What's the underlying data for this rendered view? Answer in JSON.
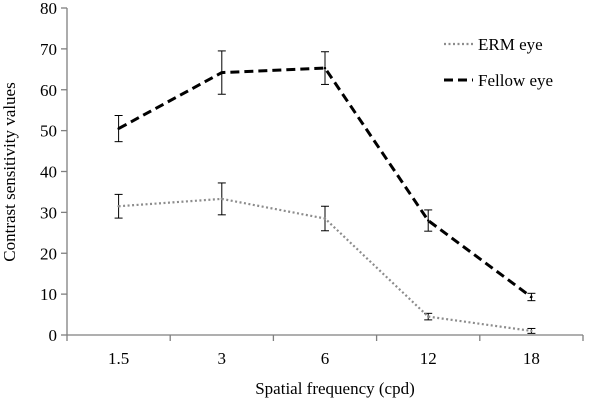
{
  "chart_data": {
    "type": "line",
    "title": "",
    "xlabel": "Spatial frequency (cpd)",
    "ylabel": "Contrast sensitivity values",
    "categories": [
      "1.5",
      "3",
      "6",
      "12",
      "18"
    ],
    "ylim": [
      0,
      80
    ],
    "yticks": [
      0,
      10,
      20,
      30,
      40,
      50,
      60,
      70,
      80
    ],
    "grid": false,
    "legend_position": "top-right",
    "series": [
      {
        "name": "ERM eye",
        "values": [
          31.5,
          33.3,
          28.5,
          4.5,
          1.0
        ],
        "error": [
          2.9,
          3.9,
          3.0,
          0.8,
          0.6
        ],
        "line_style": "dotted",
        "color": "#8c8c8c"
      },
      {
        "name": "Fellow eye",
        "values": [
          50.5,
          64.2,
          65.3,
          28.0,
          9.3
        ],
        "error": [
          3.2,
          5.3,
          4.0,
          2.6,
          0.9
        ],
        "line_style": "dashed",
        "color": "#000000"
      }
    ]
  }
}
